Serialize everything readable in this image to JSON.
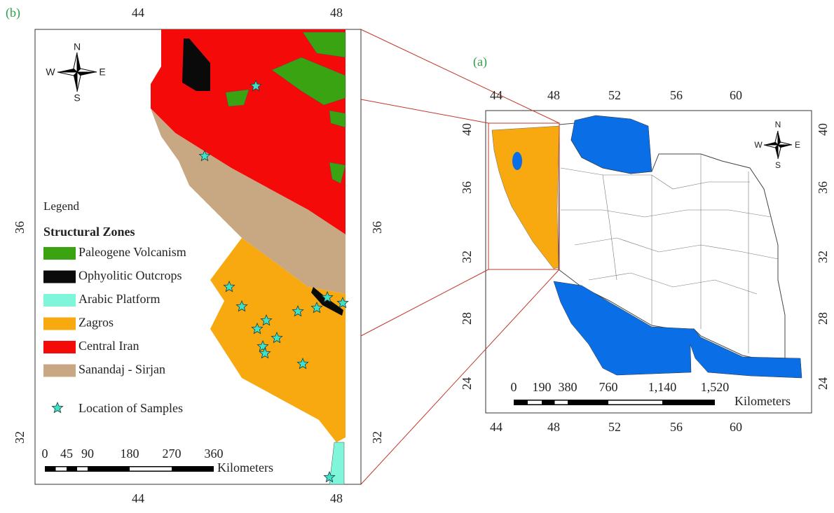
{
  "panel_b": {
    "label": "(b)",
    "top_ticks": [
      "44",
      "48"
    ],
    "bottom_ticks": [
      "44",
      "48"
    ],
    "left_ticks": [
      "36",
      "32"
    ],
    "right_ticks": [
      "36",
      "32"
    ],
    "compass": {
      "n": "N",
      "s": "S",
      "w": "W",
      "e": "E"
    },
    "legend": {
      "title": "Legend",
      "subtitle": "Structural Zones",
      "items": [
        {
          "label": "Paleogene Volcanism",
          "color": "#3aa312"
        },
        {
          "label": "Ophyolitic Outcrops",
          "color": "#0a0a0a"
        },
        {
          "label": "Arabic Platform",
          "color": "#7ff5d9"
        },
        {
          "label": "Zagros",
          "color": "#f7a90f"
        },
        {
          "label": "Central Iran",
          "color": "#f50a0a"
        },
        {
          "label": "Sanandaj - Sirjan",
          "color": "#c8a883"
        }
      ],
      "samples": "Location of Samples"
    },
    "scale": {
      "labels": [
        "0",
        "45",
        "90",
        "180",
        "270",
        "360"
      ],
      "unit": "Kilometers"
    }
  },
  "panel_a": {
    "label": "(a)",
    "top_ticks": [
      "44",
      "48",
      "52",
      "56",
      "60"
    ],
    "bottom_ticks": [
      "44",
      "48",
      "52",
      "56",
      "60"
    ],
    "left_ticks": [
      "40",
      "36",
      "32",
      "28",
      "24"
    ],
    "right_ticks": [
      "40",
      "36",
      "32",
      "28",
      "24"
    ],
    "compass": {
      "n": "N",
      "s": "S",
      "w": "W",
      "e": "E"
    },
    "scale": {
      "labels": [
        "0",
        "190",
        "380",
        "760",
        "1,140",
        "1,520"
      ],
      "unit": "Kilometers"
    }
  }
}
